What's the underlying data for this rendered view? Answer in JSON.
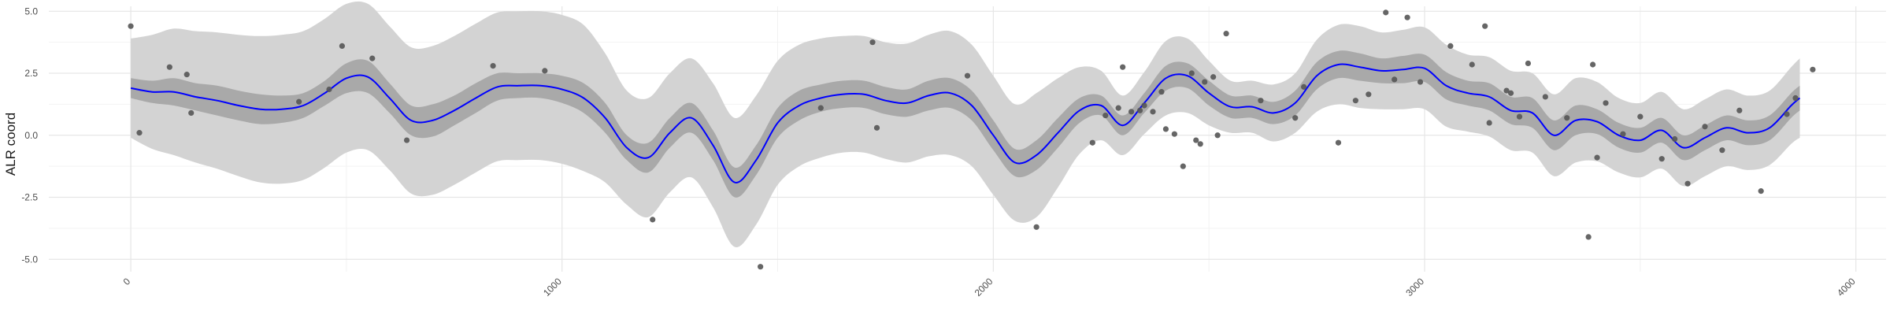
{
  "chart_data": {
    "type": "line",
    "title": "",
    "xlabel": "",
    "ylabel": "ALR coord",
    "xlim": [
      -190,
      4070
    ],
    "ylim": [
      -5.5,
      5.2
    ],
    "x_ticks": [
      0,
      1000,
      2000,
      3000,
      4000
    ],
    "x_tick_labels": [
      "0",
      "1000",
      "2000",
      "3000",
      "4000"
    ],
    "y_ticks": [
      -5.0,
      -2.5,
      0.0,
      2.5,
      5.0
    ],
    "y_tick_labels": [
      "-5.0",
      "-2.5",
      "0.0",
      "2.5",
      "5.0"
    ],
    "grid": true,
    "colors": {
      "trend_line": "#0000ff",
      "inner_band": "#a9a9a9",
      "outer_band": "#d3d3d3",
      "points": "#555555",
      "grid_major": "#e6e6e6",
      "grid_minor": "#f2f2f2"
    },
    "trend": {
      "x": [
        0,
        50,
        100,
        150,
        200,
        250,
        300,
        350,
        400,
        450,
        500,
        550,
        600,
        650,
        700,
        750,
        800,
        850,
        900,
        950,
        1000,
        1050,
        1100,
        1150,
        1200,
        1250,
        1300,
        1350,
        1400,
        1450,
        1500,
        1550,
        1600,
        1650,
        1700,
        1750,
        1800,
        1850,
        1900,
        1950,
        2000,
        2050,
        2100,
        2150,
        2200,
        2250,
        2300,
        2350,
        2400,
        2450,
        2500,
        2550,
        2600,
        2650,
        2700,
        2750,
        2800,
        2850,
        2900,
        2950,
        3000,
        3050,
        3100,
        3150,
        3200,
        3250,
        3300,
        3350,
        3400,
        3450,
        3500,
        3550,
        3600,
        3650,
        3700,
        3750,
        3800,
        3850,
        3870
      ],
      "y": [
        1.9,
        1.75,
        1.75,
        1.55,
        1.4,
        1.2,
        1.05,
        1.05,
        1.2,
        1.7,
        2.3,
        2.35,
        1.5,
        0.6,
        0.6,
        1.0,
        1.5,
        1.95,
        2.0,
        2.0,
        1.85,
        1.5,
        0.7,
        -0.5,
        -0.9,
        0.1,
        0.7,
        -0.4,
        -1.9,
        -1.0,
        0.5,
        1.2,
        1.5,
        1.65,
        1.65,
        1.4,
        1.3,
        1.6,
        1.7,
        1.2,
        0.0,
        -1.1,
        -0.8,
        0.1,
        1.0,
        1.2,
        0.4,
        1.3,
        2.3,
        2.4,
        1.7,
        1.15,
        1.15,
        0.9,
        1.3,
        2.4,
        2.85,
        2.75,
        2.6,
        2.65,
        2.7,
        2.0,
        1.7,
        1.55,
        1.0,
        0.9,
        0.0,
        0.6,
        0.55,
        0.0,
        -0.2,
        0.2,
        -0.5,
        -0.1,
        0.3,
        0.1,
        0.3,
        1.2,
        1.5
      ],
      "inner": [
        1.5,
        1.3,
        1.2,
        1.0,
        0.8,
        0.6,
        0.45,
        0.5,
        0.7,
        1.2,
        1.7,
        1.7,
        0.9,
        0.0,
        -0.05,
        0.4,
        0.9,
        1.4,
        1.5,
        1.5,
        1.3,
        0.9,
        0.1,
        -1.0,
        -1.5,
        -0.5,
        0.1,
        -1.0,
        -2.5,
        -1.6,
        -0.1,
        0.6,
        0.95,
        1.1,
        1.1,
        0.85,
        0.75,
        1.0,
        1.1,
        0.6,
        -0.6,
        -1.65,
        -1.4,
        -0.5,
        0.5,
        0.8,
        0.0,
        0.9,
        1.8,
        1.9,
        1.2,
        0.7,
        0.7,
        0.45,
        0.8,
        1.85,
        2.3,
        2.2,
        2.1,
        2.1,
        2.15,
        1.45,
        1.2,
        1.0,
        0.45,
        0.3,
        -0.6,
        0.0,
        0.05,
        -0.5,
        -0.7,
        -0.3,
        -1.0,
        -0.6,
        -0.2,
        -0.4,
        -0.2,
        0.7,
        1.0
      ],
      "outer": [
        1.6,
        1.85,
        2.0,
        2.1,
        2.15,
        2.25,
        2.35,
        2.45,
        2.5,
        2.5,
        2.4,
        2.3,
        2.3,
        2.35,
        2.35,
        2.4,
        2.4,
        2.45,
        2.5,
        2.5,
        2.45,
        2.35,
        2.0,
        1.8,
        1.8,
        1.8,
        1.8,
        1.9,
        2.0,
        2.0,
        1.9,
        1.85,
        1.85,
        1.8,
        1.8,
        1.8,
        1.85,
        1.85,
        1.9,
        1.85,
        1.8,
        1.8,
        1.9,
        1.6,
        1.25,
        1.0,
        0.8,
        0.85,
        1.0,
        1.0,
        0.8,
        0.6,
        0.6,
        0.7,
        0.7,
        0.9,
        1.05,
        1.1,
        1.05,
        1.05,
        1.1,
        1.1,
        1.05,
        1.05,
        1.05,
        1.0,
        1.05,
        1.1,
        1.1,
        1.0,
        1.0,
        1.05,
        1.05,
        1.05,
        1.05,
        1.0,
        1.0,
        1.05,
        1.1
      ]
    },
    "points": {
      "x": [
        0,
        20,
        90,
        130,
        140,
        390,
        460,
        490,
        560,
        640,
        840,
        960,
        1210,
        1460,
        1600,
        1720,
        1730,
        1940,
        2100,
        2230,
        2260,
        2290,
        2300,
        2320,
        2340,
        2350,
        2370,
        2390,
        2400,
        2420,
        2440,
        2460,
        2470,
        2480,
        2490,
        2510,
        2520,
        2540,
        2620,
        2700,
        2720,
        2800,
        2840,
        2870,
        2910,
        2930,
        2960,
        2990,
        3060,
        3110,
        3140,
        3150,
        3190,
        3200,
        3220,
        3240,
        3280,
        3330,
        3380,
        3390,
        3400,
        3420,
        3460,
        3500,
        3550,
        3580,
        3610,
        3650,
        3690,
        3730,
        3780,
        3840,
        3860,
        3900
      ],
      "y": [
        4.4,
        0.1,
        2.75,
        2.45,
        0.9,
        1.35,
        1.85,
        3.6,
        3.1,
        -0.2,
        2.8,
        2.6,
        -3.4,
        -5.3,
        1.1,
        3.75,
        0.3,
        2.4,
        -3.7,
        -0.3,
        0.8,
        1.1,
        2.75,
        0.95,
        1.0,
        1.2,
        0.95,
        1.75,
        0.25,
        0.05,
        -1.25,
        2.5,
        -0.2,
        -0.35,
        2.15,
        2.35,
        0.0,
        4.1,
        1.4,
        0.7,
        1.95,
        -0.3,
        1.4,
        1.65,
        4.95,
        2.25,
        4.75,
        2.15,
        3.6,
        2.85,
        4.4,
        0.5,
        1.8,
        1.7,
        0.75,
        2.9,
        1.55,
        0.7,
        -4.1,
        2.85,
        -0.9,
        1.3,
        0.05,
        0.75,
        -0.95,
        -0.15,
        -1.95,
        0.35,
        -0.6,
        1.0,
        -2.25,
        0.85,
        1.5,
        2.65
      ]
    }
  }
}
